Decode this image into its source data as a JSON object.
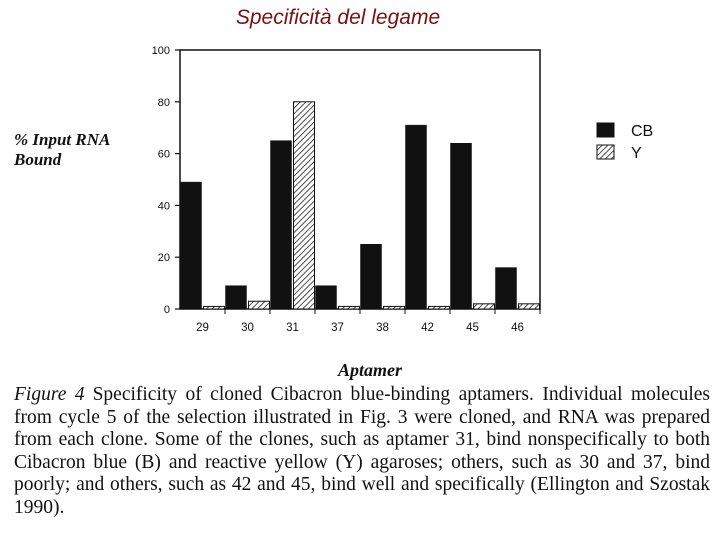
{
  "slide_title": "Specificità del legame",
  "caption": {
    "figure_label": "Figure 4",
    "text": "Specificity of cloned Cibacron blue-binding aptamers. Individual molecules from cycle 5 of the selection illustrated in Fig. 3 were cloned, and RNA was prepared from each clone. Some of the clones, such as aptamer 31, bind nonspecifically to both Cibacron blue (B) and reactive yellow (Y) agaroses; others, such as 30 and 37, bind poorly; and others, such as 42 and 45, bind well and specifically (Ellington and Szostak 1990)."
  },
  "colors": {
    "cb": "#111111",
    "y_hatch": "#222222",
    "title": "#7a1010"
  },
  "chart_data": {
    "type": "bar",
    "title": "",
    "xlabel": "Aptamer",
    "ylabel_lines": [
      "% Input RNA",
      "Bound"
    ],
    "categories": [
      "29",
      "30",
      "31",
      "37",
      "38",
      "42",
      "45",
      "46"
    ],
    "series": [
      {
        "name": "CB",
        "fill": "solid",
        "values": [
          49,
          9,
          65,
          9,
          25,
          71,
          64,
          16
        ]
      },
      {
        "name": "Y",
        "fill": "hatched",
        "values": [
          1,
          3,
          80,
          1,
          1,
          1,
          2,
          2
        ]
      }
    ],
    "ylim": [
      0,
      100
    ],
    "yticks": [
      "0",
      "20",
      "40",
      "60",
      "80",
      "100"
    ],
    "grid": false,
    "legend_position": "right"
  }
}
